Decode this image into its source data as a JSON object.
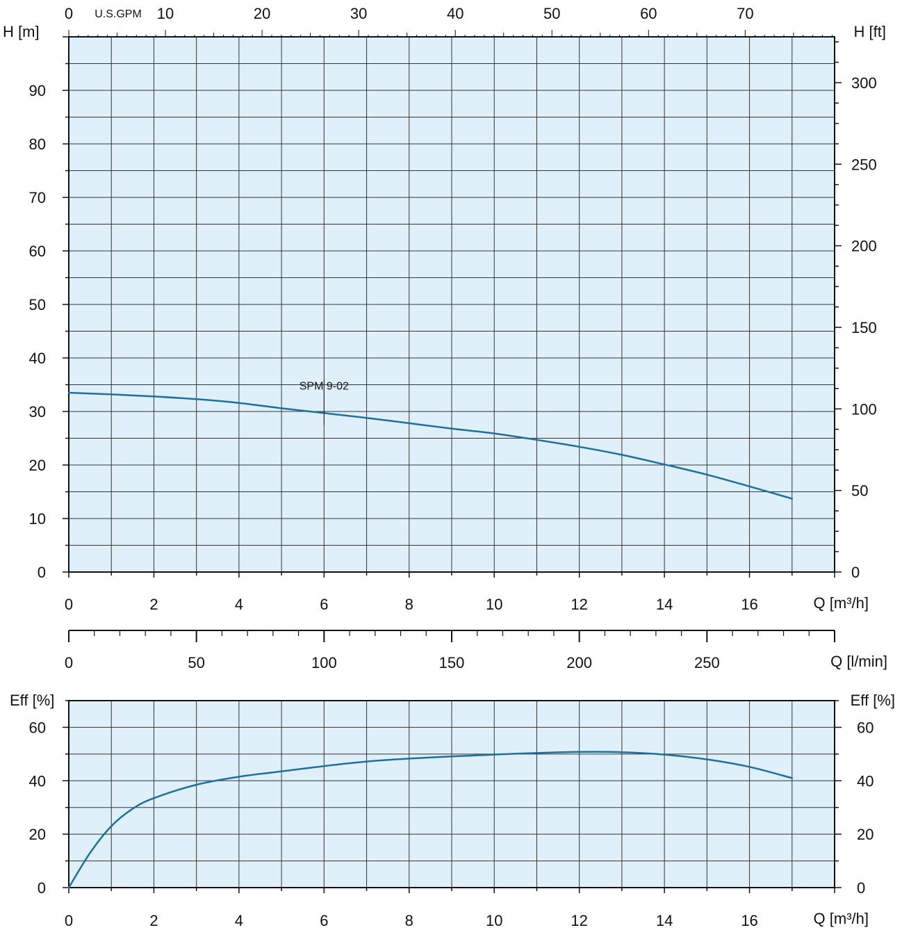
{
  "chart_data": [
    {
      "type": "line",
      "title": "",
      "xlabel": "Q [m³/h]",
      "ylabel": "H [m]",
      "y2label": "H [ft]",
      "x2label": "U.S.GPM",
      "xlim": [
        0,
        18
      ],
      "ylim": [
        0,
        100
      ],
      "x_ticks": [
        "0",
        "2",
        "4",
        "6",
        "8",
        "10",
        "12",
        "14",
        "16"
      ],
      "y_ticks": [
        "0",
        "10",
        "20",
        "30",
        "40",
        "50",
        "60",
        "70",
        "80",
        "90"
      ],
      "y2_ticks": [
        "0",
        "50",
        "100",
        "150",
        "200",
        "250",
        "300"
      ],
      "x2_ticks": [
        "0",
        "10",
        "20",
        "30",
        "40",
        "50",
        "60",
        "70"
      ],
      "grid": true,
      "series": [
        {
          "name": "SPM 9-02",
          "x": [
            0,
            1,
            2,
            3,
            4,
            5,
            6,
            7,
            8,
            9,
            10,
            11,
            12,
            13,
            14,
            15,
            16,
            17
          ],
          "y": [
            33.5,
            33.2,
            32.8,
            32.3,
            31.6,
            30.6,
            29.7,
            28.8,
            27.8,
            26.8,
            25.9,
            24.7,
            23.4,
            21.9,
            20.1,
            18.2,
            16.0,
            13.7
          ]
        }
      ],
      "color": "#1f6f9c",
      "background": "#dff0fb"
    },
    {
      "type": "axis",
      "xlabel": "Q [l/min]",
      "ticks": [
        "0",
        "50",
        "100",
        "150",
        "200",
        "250"
      ]
    },
    {
      "type": "line",
      "title": "",
      "xlabel": "Q [m³/h]",
      "ylabel": "Eff [%]",
      "y2label": "Eff [%]",
      "xlim": [
        0,
        18
      ],
      "ylim": [
        0,
        70
      ],
      "x_ticks": [
        "0",
        "2",
        "4",
        "6",
        "8",
        "10",
        "12",
        "14",
        "16"
      ],
      "y_ticks": [
        "0",
        "20",
        "40",
        "60"
      ],
      "grid": true,
      "series": [
        {
          "name": "",
          "x": [
            0,
            0.5,
            1,
            1.5,
            2,
            3,
            4,
            5,
            6,
            7,
            8,
            9,
            10,
            11,
            12,
            13,
            14,
            15,
            16,
            17
          ],
          "y": [
            0,
            13,
            23,
            29.5,
            33.5,
            38.5,
            41.5,
            43.5,
            45.5,
            47.2,
            48.3,
            49.1,
            49.8,
            50.4,
            50.8,
            50.7,
            49.8,
            48.0,
            45.2,
            41.0
          ]
        }
      ],
      "color": "#1f6f9c",
      "background": "#dff0fb"
    }
  ]
}
